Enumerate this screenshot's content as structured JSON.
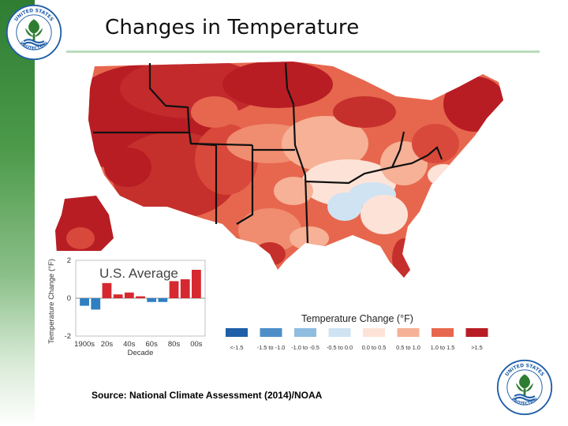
{
  "title": "Changes in Temperature",
  "source": "Source:  National Climate Assessment (2014)/NOAA",
  "colors": {
    "accent_green": "#2e7d32",
    "epa_blue": "#1f5ea8",
    "warm_high": "#b81d24",
    "cool": "#3f7fbf"
  },
  "logos": {
    "icon": "epa-seal-icon",
    "top_text": "UNITED STATES",
    "left_text": "ENVIRONMENTAL",
    "bottom_text": "PROTECTION",
    "right_text": "AGENCY"
  },
  "legend": {
    "title": "Temperature Change (°F)",
    "items": [
      {
        "label": "<-1.5",
        "color": "#1f5fa8"
      },
      {
        "label": "-1.5 to -1.0",
        "color": "#4e8fc9"
      },
      {
        "label": "-1.0 to -0.5",
        "color": "#8fbde0"
      },
      {
        "label": "-0.5 to 0.0",
        "color": "#cfe3f2"
      },
      {
        "label": "0.0 to 0.5",
        "color": "#fde3d7"
      },
      {
        "label": "0.5 to 1.0",
        "color": "#f6b196"
      },
      {
        "label": "1.0 to 1.5",
        "color": "#e7674e"
      },
      {
        "label": ">1.5",
        "color": "#b81d24"
      }
    ]
  },
  "chart_data": {
    "type": "bar",
    "title": "U.S. Average",
    "xlabel": "Decade",
    "ylabel": "Temperature Change (°F)",
    "categories": [
      "1900s",
      "10s",
      "20s",
      "30s",
      "40s",
      "50s",
      "60s",
      "70s",
      "80s",
      "90s",
      "00s"
    ],
    "tick_labels": [
      "1900s",
      "20s",
      "40s",
      "60s",
      "80s",
      "00s"
    ],
    "values": [
      -0.4,
      -0.6,
      0.8,
      0.2,
      0.3,
      0.1,
      -0.2,
      -0.2,
      0.9,
      1.0,
      1.5
    ],
    "ylim": [
      -2,
      2
    ],
    "yticks": [
      "2",
      "0",
      "-2"
    ]
  }
}
